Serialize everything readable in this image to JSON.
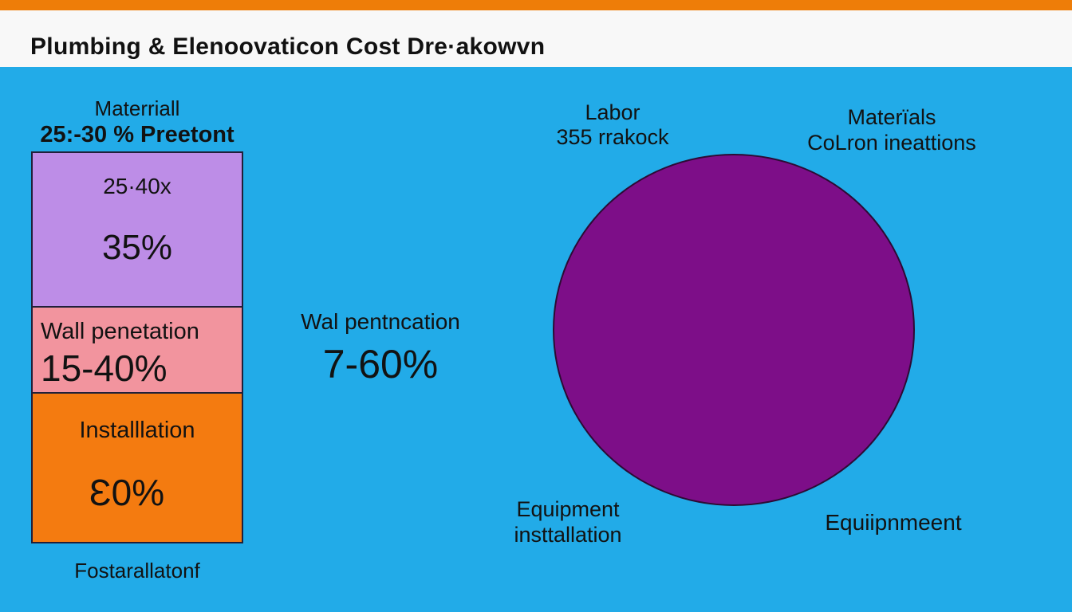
{
  "header": {
    "title": "Plumbing & Elenoovaticon Cost Dre·akowvn"
  },
  "colors": {
    "background": "#22abe8",
    "top_strip": "#ee7d08",
    "header_bg": "#f8f8f8",
    "segment_material": "#bd8de7",
    "segment_wall_penetration": "#f2949e",
    "segment_installation": "#f47b10",
    "circle": "#7d0e88",
    "text": "#121212"
  },
  "bar_section": {
    "caption_line1": "Materriall",
    "caption_line2": "25:-30 % Preetont",
    "segments": [
      {
        "name": "material",
        "line1": "25·40x",
        "value": "35%"
      },
      {
        "name": "wall-penetration",
        "line1": "Wall penetation",
        "value": "15-40%"
      },
      {
        "name": "installation",
        "line1": "Installlation",
        "value": "Ɛ0%"
      }
    ],
    "footer_label": "Fostarallatonf"
  },
  "middle_label": {
    "line1": "Wal pentncation",
    "line2": "7-60%"
  },
  "circle_section": {
    "labor_line1": "Labor",
    "labor_line2": "355 rrakock",
    "materials_line1": "Materïals",
    "materials_line2": "CoLron ineattions",
    "equipment_line1": "Equipment",
    "equipment_line2": "insttallation",
    "bottom_right_label": "Equiipnmeent"
  },
  "chart_data": [
    {
      "type": "bar",
      "subtype": "stacked-vertical-single-column",
      "title": "Plumbing & Elenoovaticon Cost Dre·akowvn",
      "categories": [
        "Materriall 25:-30 % Preetont",
        "Wall penetation",
        "Installlation"
      ],
      "series": [
        {
          "name": "Material",
          "values": [
            35
          ],
          "label": "25·40x / 35%",
          "color": "#bd8de7"
        },
        {
          "name": "Wall penetration",
          "values": [
            27.5
          ],
          "label": "15-40%",
          "color": "#f2949e"
        },
        {
          "name": "Installation",
          "values": [
            30
          ],
          "label": "Ɛ0%",
          "color": "#f47b10"
        }
      ],
      "annotations": [
        "Wal pentncation 7-60%",
        "Fostarallatonf"
      ],
      "legend_position": "none",
      "grid": false
    },
    {
      "type": "pie",
      "title": "Labor 355 rrakock",
      "categories": [
        "Labor"
      ],
      "values": [
        100
      ],
      "colors": [
        "#7d0e88"
      ],
      "annotations": [
        "Labor 355 rrakock",
        "Materïals CoLron ineattions",
        "Equipment insttallation",
        "Equiipnmeent"
      ],
      "legend_position": "none",
      "grid": false
    }
  ]
}
